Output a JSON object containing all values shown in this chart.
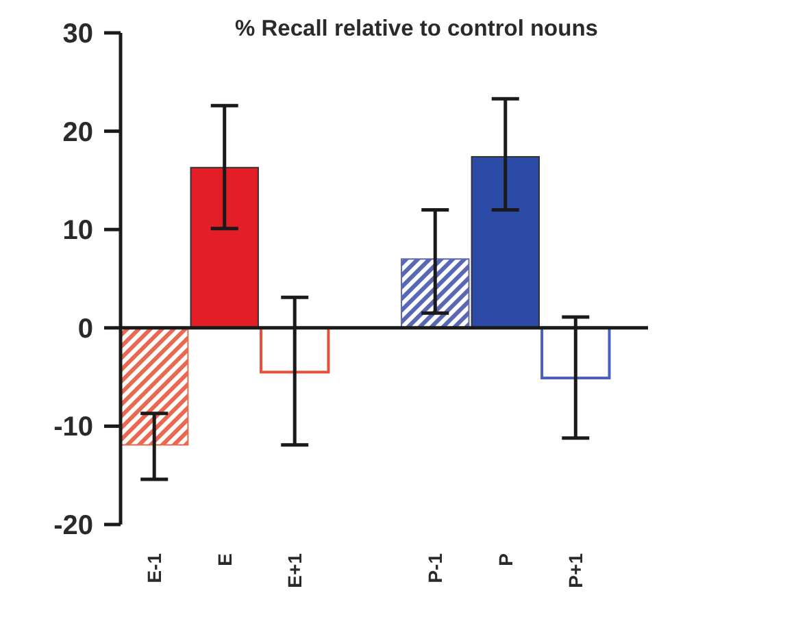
{
  "chart_data": {
    "type": "bar",
    "title": "% Recall relative to control nouns",
    "stacked": true,
    "categories": [
      "E-1",
      "E",
      "E+1",
      null,
      "P-1",
      "P",
      "P+1"
    ],
    "ylim": [
      -20,
      30
    ],
    "yticks": [
      -20,
      -10,
      0,
      10,
      20,
      30
    ],
    "series": [
      {
        "colors": [
          "#e8694f",
          null,
          null,
          null,
          "#5a68b4",
          null,
          null
        ],
        "values": [
          -11.9,
          null,
          null,
          null,
          7.0,
          null,
          null
        ],
        "errors": [
          [
            -15.4,
            -8.7
          ],
          null,
          null,
          null,
          [
            1.5,
            12.0
          ],
          null,
          null
        ]
      },
      {
        "colors": [
          null,
          "#e41e26",
          null,
          null,
          null,
          "#2b4ba6",
          null
        ],
        "values": [
          null,
          16.3,
          null,
          null,
          null,
          17.4,
          null
        ],
        "errors": [
          null,
          [
            10.1,
            22.6
          ],
          null,
          null,
          null,
          [
            12.0,
            23.3
          ],
          null
        ]
      },
      {
        "colors": [
          null,
          null,
          "#e8503a",
          null,
          null,
          null,
          "#4a5fc0"
        ],
        "values": [
          null,
          null,
          -4.5,
          null,
          null,
          null,
          -5.1
        ],
        "errors": [
          null,
          null,
          [
            -11.9,
            3.1
          ],
          null,
          null,
          null,
          [
            -11.2,
            1.1
          ]
        ]
      }
    ]
  }
}
